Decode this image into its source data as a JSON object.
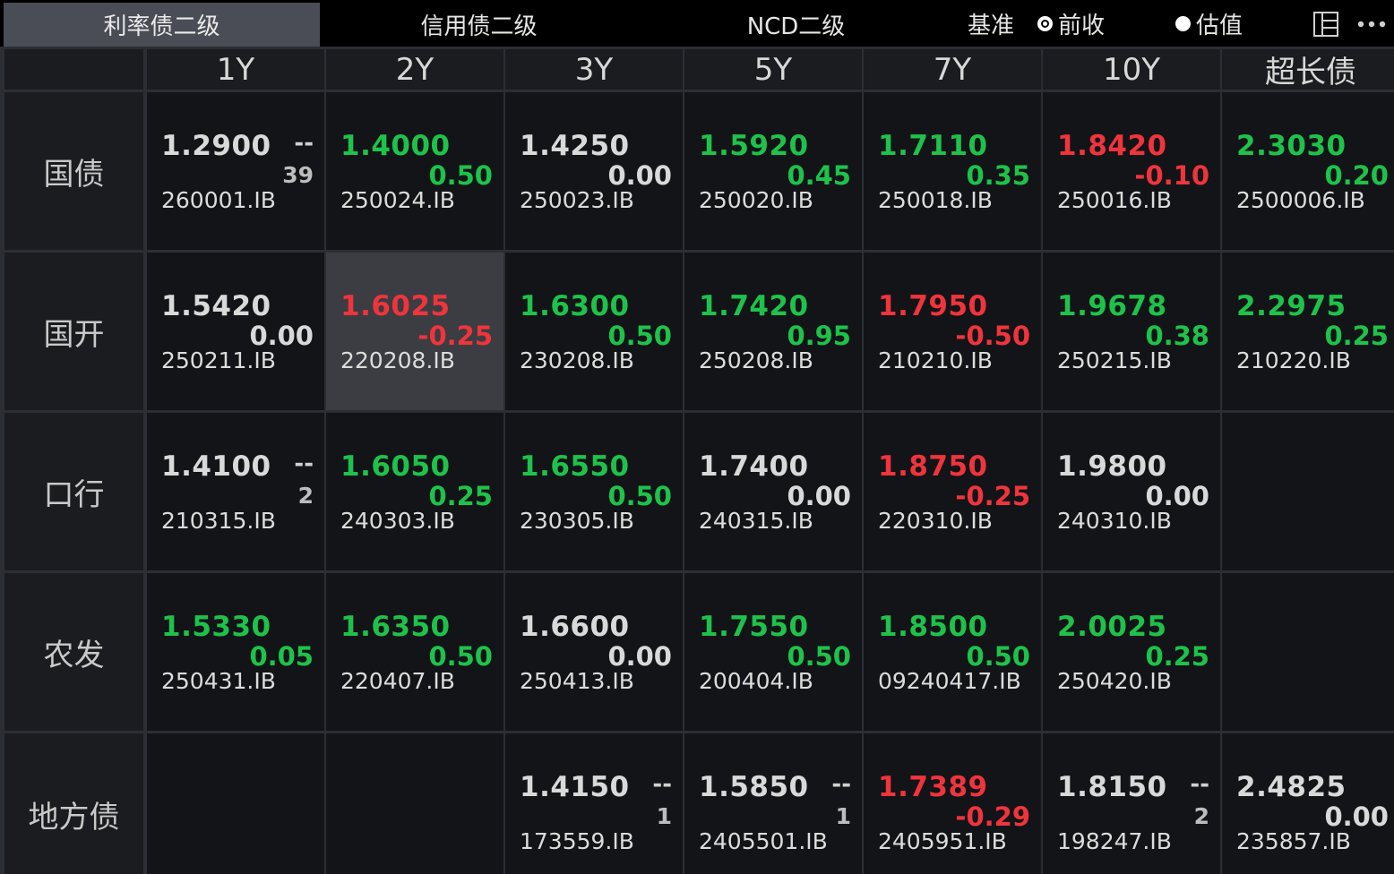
{
  "tabs": [
    {
      "label": "利率债二级",
      "active": true
    },
    {
      "label": "信用债二级",
      "active": false
    },
    {
      "label": "NCD二级",
      "active": false
    }
  ],
  "basis": {
    "label": "基准",
    "options": [
      {
        "label": "前收",
        "checked": true
      },
      {
        "label": "估值",
        "checked": false
      }
    ]
  },
  "icons": {
    "layout": "layout-panel-icon",
    "more": "more-dots-icon"
  },
  "colors": {
    "up": "#f0343c",
    "down": "#1ec24a",
    "flat": "#d9d9d9",
    "selected": "#3b3d42"
  },
  "columns": [
    "1Y",
    "2Y",
    "3Y",
    "5Y",
    "7Y",
    "10Y",
    "超长债"
  ],
  "rows": [
    {
      "label": "国债",
      "cells": [
        {
          "yield": "1.2900",
          "dash": "--",
          "change": "39",
          "change_color": "grey",
          "yield_color": "white",
          "code": "260001.IB"
        },
        {
          "yield": "1.4000",
          "change": "0.50",
          "change_color": "green",
          "yield_color": "green",
          "code": "250024.IB"
        },
        {
          "yield": "1.4250",
          "change": "0.00",
          "change_color": "white",
          "yield_color": "white",
          "code": "250023.IB"
        },
        {
          "yield": "1.5920",
          "change": "0.45",
          "change_color": "green",
          "yield_color": "green",
          "code": "250020.IB"
        },
        {
          "yield": "1.7110",
          "change": "0.35",
          "change_color": "green",
          "yield_color": "green",
          "code": "250018.IB"
        },
        {
          "yield": "1.8420",
          "change": "-0.10",
          "change_color": "red",
          "yield_color": "red",
          "code": "250016.IB"
        },
        {
          "yield": "2.3030",
          "change": "0.20",
          "change_color": "green",
          "yield_color": "green",
          "code": "2500006.IB"
        }
      ]
    },
    {
      "label": "国开",
      "cells": [
        {
          "yield": "1.5420",
          "change": "0.00",
          "change_color": "white",
          "yield_color": "white",
          "code": "250211.IB"
        },
        {
          "yield": "1.6025",
          "change": "-0.25",
          "change_color": "red",
          "yield_color": "red",
          "code": "220208.IB",
          "selected": true
        },
        {
          "yield": "1.6300",
          "change": "0.50",
          "change_color": "green",
          "yield_color": "green",
          "code": "230208.IB"
        },
        {
          "yield": "1.7420",
          "change": "0.95",
          "change_color": "green",
          "yield_color": "green",
          "code": "250208.IB"
        },
        {
          "yield": "1.7950",
          "change": "-0.50",
          "change_color": "red",
          "yield_color": "red",
          "code": "210210.IB"
        },
        {
          "yield": "1.9678",
          "change": "0.38",
          "change_color": "green",
          "yield_color": "green",
          "code": "250215.IB"
        },
        {
          "yield": "2.2975",
          "change": "0.25",
          "change_color": "green",
          "yield_color": "green",
          "code": "210220.IB"
        }
      ]
    },
    {
      "label": "口行",
      "cells": [
        {
          "yield": "1.4100",
          "dash": "--",
          "change": "2",
          "change_color": "grey",
          "yield_color": "white",
          "code": "210315.IB"
        },
        {
          "yield": "1.6050",
          "change": "0.25",
          "change_color": "green",
          "yield_color": "green",
          "code": "240303.IB"
        },
        {
          "yield": "1.6550",
          "change": "0.50",
          "change_color": "green",
          "yield_color": "green",
          "code": "230305.IB"
        },
        {
          "yield": "1.7400",
          "change": "0.00",
          "change_color": "white",
          "yield_color": "white",
          "code": "240315.IB"
        },
        {
          "yield": "1.8750",
          "change": "-0.25",
          "change_color": "red",
          "yield_color": "red",
          "code": "220310.IB"
        },
        {
          "yield": "1.9800",
          "change": "0.00",
          "change_color": "white",
          "yield_color": "white",
          "code": "240310.IB"
        },
        null
      ]
    },
    {
      "label": "农发",
      "cells": [
        {
          "yield": "1.5330",
          "change": "0.05",
          "change_color": "green",
          "yield_color": "green",
          "code": "250431.IB"
        },
        {
          "yield": "1.6350",
          "change": "0.50",
          "change_color": "green",
          "yield_color": "green",
          "code": "220407.IB"
        },
        {
          "yield": "1.6600",
          "change": "0.00",
          "change_color": "white",
          "yield_color": "white",
          "code": "250413.IB"
        },
        {
          "yield": "1.7550",
          "change": "0.50",
          "change_color": "green",
          "yield_color": "green",
          "code": "200404.IB"
        },
        {
          "yield": "1.8500",
          "change": "0.50",
          "change_color": "green",
          "yield_color": "green",
          "code": "09240417.IB"
        },
        {
          "yield": "2.0025",
          "change": "0.25",
          "change_color": "green",
          "yield_color": "green",
          "code": "250420.IB"
        },
        null
      ]
    },
    {
      "label": "地方债",
      "cells": [
        null,
        null,
        {
          "yield": "1.4150",
          "dash": "--",
          "change": "1",
          "change_color": "grey",
          "yield_color": "white",
          "code": "173559.IB"
        },
        {
          "yield": "1.5850",
          "dash": "--",
          "change": "1",
          "change_color": "grey",
          "yield_color": "white",
          "code": "2405501.IB"
        },
        {
          "yield": "1.7389",
          "change": "-0.29",
          "change_color": "red",
          "yield_color": "red",
          "code": "2405951.IB"
        },
        {
          "yield": "1.8150",
          "dash": "--",
          "change": "2",
          "change_color": "grey",
          "yield_color": "white",
          "code": "198247.IB"
        },
        {
          "yield": "2.4825",
          "change": "0.00",
          "change_color": "white",
          "yield_color": "white",
          "code": "235857.IB"
        }
      ]
    }
  ]
}
